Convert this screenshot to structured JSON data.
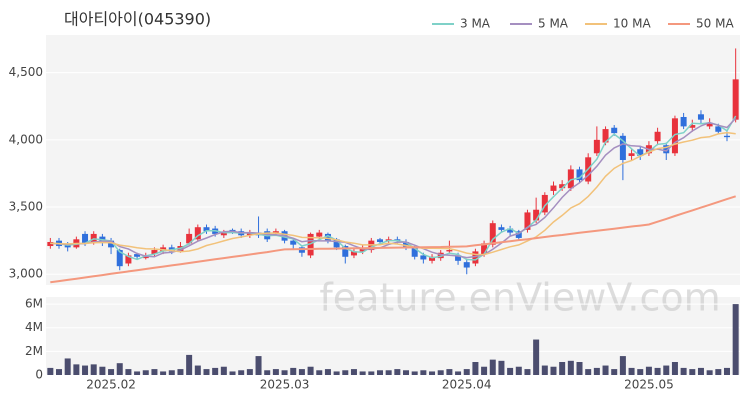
{
  "watermark": "feature.enViewV.com",
  "chart_data": [
    {
      "type": "candlestick",
      "title": "대아티아이(045390)",
      "categories": [
        null,
        null,
        null,
        null,
        null,
        null,
        null,
        "2025.02",
        null,
        null,
        null,
        null,
        null,
        null,
        null,
        null,
        null,
        null,
        null,
        null,
        null,
        null,
        null,
        null,
        null,
        null,
        null,
        "2025.03",
        null,
        null,
        null,
        null,
        null,
        null,
        null,
        null,
        null,
        null,
        null,
        null,
        null,
        null,
        null,
        null,
        null,
        null,
        null,
        null,
        "2025.04",
        null,
        null,
        null,
        null,
        null,
        null,
        null,
        null,
        null,
        null,
        null,
        null,
        null,
        null,
        null,
        null,
        null,
        null,
        null,
        null,
        "2025.05",
        null,
        null,
        null,
        null,
        null,
        null,
        null,
        null,
        null,
        null
      ],
      "open": [
        3210,
        3250,
        3220,
        3200,
        3300,
        3240,
        3280,
        3250,
        3180,
        3080,
        3150,
        3120,
        3150,
        3170,
        3200,
        3170,
        3230,
        3260,
        3350,
        3340,
        3290,
        3330,
        3320,
        3290,
        3310,
        3320,
        3310,
        3320,
        3250,
        3200,
        3140,
        3280,
        3300,
        3260,
        3210,
        3140,
        3170,
        3180,
        3260,
        3250,
        3260,
        3240,
        3200,
        3140,
        3100,
        3120,
        3170,
        3140,
        3090,
        3080,
        3150,
        3220,
        3350,
        3340,
        3320,
        3330,
        3400,
        3460,
        3620,
        3640,
        3640,
        3780,
        3690,
        3900,
        3980,
        4090,
        4030,
        3880,
        3930,
        3900,
        3990,
        3960,
        3900,
        4170,
        4090,
        4190,
        4100,
        4100,
        4030,
        4150
      ],
      "high": [
        3270,
        3270,
        3240,
        3280,
        3320,
        3320,
        3300,
        3270,
        3190,
        3160,
        3160,
        3160,
        3200,
        3220,
        3220,
        3240,
        3340,
        3370,
        3370,
        3360,
        3330,
        3340,
        3340,
        3330,
        3430,
        3340,
        3340,
        3330,
        3260,
        3210,
        3310,
        3330,
        3310,
        3270,
        3220,
        3190,
        3220,
        3270,
        3270,
        3280,
        3280,
        3260,
        3210,
        3160,
        3150,
        3180,
        3250,
        3160,
        3110,
        3190,
        3250,
        3400,
        3370,
        3360,
        3330,
        3480,
        3570,
        3610,
        3690,
        3700,
        3810,
        3800,
        3900,
        4100,
        4100,
        4110,
        4050,
        3930,
        3950,
        3990,
        4090,
        3980,
        4180,
        4200,
        4150,
        4220,
        4160,
        4120,
        4070,
        4680
      ],
      "low": [
        3190,
        3190,
        3170,
        3190,
        3210,
        3220,
        3210,
        3150,
        3030,
        3060,
        3110,
        3110,
        3130,
        3150,
        3150,
        3160,
        3220,
        3250,
        3300,
        3280,
        3270,
        3300,
        3270,
        3270,
        3270,
        3240,
        3290,
        3230,
        3180,
        3130,
        3120,
        3260,
        3230,
        3180,
        3080,
        3120,
        3150,
        3160,
        3220,
        3230,
        3230,
        3180,
        3110,
        3080,
        3080,
        3100,
        3150,
        3070,
        3000,
        3060,
        3130,
        3200,
        3310,
        3280,
        3250,
        3310,
        3380,
        3440,
        3590,
        3620,
        3620,
        3680,
        3670,
        3880,
        3960,
        4030,
        3700,
        3850,
        3850,
        3880,
        3960,
        3850,
        3880,
        4080,
        4060,
        4120,
        4080,
        4040,
        3990,
        4130
      ],
      "close": [
        3240,
        3210,
        3200,
        3260,
        3230,
        3300,
        3240,
        3200,
        3060,
        3140,
        3130,
        3140,
        3180,
        3200,
        3170,
        3210,
        3300,
        3350,
        3320,
        3300,
        3310,
        3320,
        3290,
        3310,
        3290,
        3260,
        3320,
        3250,
        3220,
        3160,
        3300,
        3310,
        3250,
        3200,
        3130,
        3170,
        3190,
        3250,
        3240,
        3260,
        3250,
        3200,
        3130,
        3110,
        3130,
        3160,
        3180,
        3100,
        3050,
        3170,
        3230,
        3380,
        3330,
        3310,
        3270,
        3460,
        3480,
        3590,
        3660,
        3670,
        3780,
        3700,
        3870,
        4000,
        4080,
        4050,
        3850,
        3900,
        3880,
        3960,
        4060,
        3900,
        4160,
        4100,
        4110,
        4150,
        4120,
        4060,
        4020,
        4450
      ],
      "up_color": "#e8323c",
      "down_color": "#2f6fdc",
      "series": [
        {
          "name": "3 MA",
          "color": "#7fd1c8",
          "values": [
            3230,
            3227,
            3217,
            3223,
            3230,
            3263,
            3257,
            3247,
            3167,
            3133,
            3110,
            3137,
            3150,
            3173,
            3183,
            3193,
            3227,
            3287,
            3323,
            3323,
            3310,
            3310,
            3307,
            3307,
            3297,
            3287,
            3290,
            3277,
            3263,
            3210,
            3227,
            3257,
            3287,
            3253,
            3193,
            3167,
            3163,
            3203,
            3227,
            3250,
            3250,
            3237,
            3193,
            3147,
            3123,
            3133,
            3157,
            3147,
            3110,
            3107,
            3150,
            3260,
            3313,
            3340,
            3303,
            3347,
            3403,
            3510,
            3577,
            3640,
            3703,
            3717,
            3783,
            3857,
            3983,
            4043,
            3993,
            3933,
            3877,
            3913,
            3967,
            3973,
            4040,
            4053,
            4123,
            4120,
            4127,
            4110,
            4067,
            4177
          ]
        },
        {
          "name": "5 MA",
          "color": "#a58fc0",
          "values": [
            3230,
            3226,
            3222,
            3228,
            3228,
            3240,
            3246,
            3246,
            3206,
            3188,
            3154,
            3134,
            3130,
            3158,
            3164,
            3180,
            3212,
            3246,
            3270,
            3296,
            3316,
            3320,
            3308,
            3310,
            3306,
            3296,
            3294,
            3286,
            3268,
            3242,
            3250,
            3248,
            3248,
            3244,
            3238,
            3212,
            3188,
            3188,
            3196,
            3222,
            3238,
            3240,
            3216,
            3190,
            3164,
            3146,
            3142,
            3136,
            3124,
            3132,
            3146,
            3186,
            3232,
            3284,
            3304,
            3350,
            3370,
            3422,
            3494,
            3572,
            3636,
            3680,
            3736,
            3804,
            3886,
            3940,
            3970,
            3956,
            3952,
            3928,
            3930,
            3918,
            3980,
            4016,
            4066,
            4104,
            4128,
            4108,
            4092,
            4160
          ]
        },
        {
          "name": "10 MA",
          "color": "#f2c27a",
          "values": [
            3230,
            3228,
            3226,
            3229,
            3229,
            3235,
            3236,
            3234,
            3217,
            3208,
            3197,
            3190,
            3188,
            3182,
            3176,
            3167,
            3173,
            3188,
            3214,
            3230,
            3248,
            3266,
            3277,
            3290,
            3301,
            3306,
            3307,
            3297,
            3289,
            3274,
            3273,
            3271,
            3267,
            3256,
            3240,
            3231,
            3218,
            3218,
            3220,
            3230,
            3225,
            3214,
            3202,
            3193,
            3193,
            3192,
            3191,
            3176,
            3157,
            3148,
            3146,
            3164,
            3184,
            3204,
            3218,
            3248,
            3278,
            3327,
            3389,
            3438,
            3493,
            3525,
            3579,
            3649,
            3729,
            3788,
            3825,
            3846,
            3878,
            3907,
            3935,
            3944,
            3968,
            3984,
            3997,
            4017,
            4023,
            4044,
            4054,
            4045
          ]
        },
        {
          "name": "50 MA",
          "color": "#f4987e",
          "values": [
            2940,
            2949,
            2958,
            2967,
            2976,
            2985,
            2994,
            3003,
            3012,
            3021,
            3030,
            3039,
            3048,
            3057,
            3066,
            3075,
            3084,
            3093,
            3102,
            3111,
            3120,
            3129,
            3138,
            3147,
            3156,
            3165,
            3175,
            3185,
            3186,
            3187,
            3188,
            3189,
            3190,
            3191,
            3192,
            3193,
            3194,
            3195,
            3196,
            3197,
            3198,
            3199,
            3200,
            3201,
            3202,
            3203,
            3205,
            3206,
            3207,
            3215,
            3222,
            3230,
            3238,
            3246,
            3254,
            3261,
            3269,
            3277,
            3285,
            3292,
            3300,
            3308,
            3316,
            3324,
            3331,
            3339,
            3347,
            3355,
            3362,
            3370,
            3391,
            3412,
            3433,
            3454,
            3475,
            3496,
            3517,
            3538,
            3559,
            3580
          ]
        }
      ],
      "ylim": [
        2920,
        4780
      ],
      "yticks": [
        {
          "value": 3000,
          "label": "3,000"
        },
        {
          "value": 3500,
          "label": "3,500"
        },
        {
          "value": 4000,
          "label": "4,000"
        },
        {
          "value": 4500,
          "label": "4,500"
        }
      ],
      "grid": true
    },
    {
      "type": "bar",
      "color": "#4b4d6e",
      "values": [
        600000,
        500000,
        1400000,
        900000,
        800000,
        900000,
        700000,
        500000,
        1000000,
        500000,
        300000,
        400000,
        500000,
        300000,
        400000,
        500000,
        1700000,
        800000,
        500000,
        600000,
        700000,
        300000,
        400000,
        500000,
        1600000,
        400000,
        500000,
        400000,
        600000,
        500000,
        700000,
        400000,
        500000,
        300000,
        400000,
        500000,
        300000,
        300000,
        400000,
        400000,
        500000,
        400000,
        300000,
        400000,
        300000,
        400000,
        500000,
        300000,
        500000,
        1100000,
        700000,
        1300000,
        1200000,
        600000,
        700000,
        500000,
        3000000,
        800000,
        700000,
        1100000,
        1200000,
        1100000,
        500000,
        600000,
        800000,
        500000,
        1600000,
        600000,
        500000,
        700000,
        600000,
        800000,
        1100000,
        600000,
        500000,
        600000,
        400000,
        500000,
        600000,
        6000000
      ],
      "ylim": [
        0,
        6600000
      ],
      "yticks": [
        0,
        {
          "value": 2000000,
          "label": "2M"
        },
        {
          "value": 4000000,
          "label": "4M"
        },
        {
          "value": 6000000,
          "label": "6M"
        }
      ],
      "grid": true
    }
  ]
}
